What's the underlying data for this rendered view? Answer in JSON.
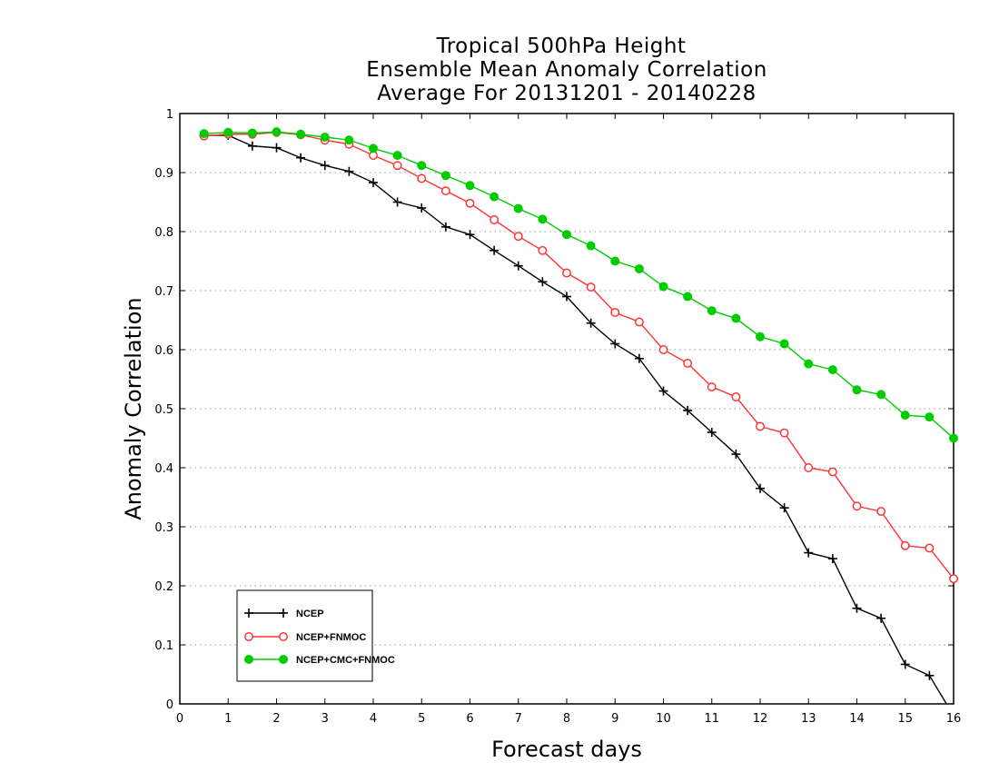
{
  "chart_data": {
    "type": "line",
    "title_lines": [
      "Tropical 500hPa Height",
      "Ensemble Mean Anomaly Correlation",
      "Average For 20131201 - 20140228"
    ],
    "xlabel": "Forecast days",
    "ylabel": "Anomaly Correlation",
    "xlim": [
      0,
      16
    ],
    "ylim": [
      0,
      1
    ],
    "xticks": [
      "0",
      "1",
      "2",
      "3",
      "4",
      "5",
      "6",
      "7",
      "8",
      "9",
      "10",
      "11",
      "12",
      "13",
      "14",
      "15",
      "16"
    ],
    "yticks": [
      "0",
      "0.1",
      "0.2",
      "0.3",
      "0.4",
      "0.5",
      "0.6",
      "0.7",
      "0.8",
      "0.9",
      "1"
    ],
    "grid": "horizontal dotted",
    "legend_position": "lower-left",
    "x": [
      0.5,
      1,
      1.5,
      2,
      2.5,
      3,
      3.5,
      4,
      4.5,
      5,
      5.5,
      6,
      6.5,
      7,
      7.5,
      8,
      8.5,
      9,
      9.5,
      10,
      10.5,
      11,
      11.5,
      12,
      12.5,
      13,
      13.5,
      14,
      14.5,
      15,
      15.5,
      16
    ],
    "series": [
      {
        "name": "NCEP",
        "color": "#000000",
        "marker": "plus",
        "values": [
          0.963,
          0.963,
          0.945,
          0.942,
          0.925,
          0.912,
          0.902,
          0.883,
          0.85,
          0.84,
          0.808,
          0.795,
          0.768,
          0.742,
          0.715,
          0.69,
          0.645,
          0.61,
          0.585,
          0.53,
          0.497,
          0.46,
          0.423,
          0.365,
          0.332,
          0.256,
          0.246,
          0.162,
          0.145,
          0.067,
          0.048,
          -0.02
        ]
      },
      {
        "name": "NCEP+FNMOC",
        "color": "#ff3333",
        "marker": "open-circle",
        "values": [
          0.962,
          0.965,
          0.965,
          0.968,
          0.964,
          0.955,
          0.948,
          0.929,
          0.912,
          0.89,
          0.869,
          0.848,
          0.82,
          0.792,
          0.768,
          0.73,
          0.706,
          0.663,
          0.647,
          0.6,
          0.577,
          0.537,
          0.52,
          0.47,
          0.459,
          0.4,
          0.393,
          0.335,
          0.326,
          0.268,
          0.264,
          0.212
        ]
      },
      {
        "name": "NCEP+CMC+FNMOC",
        "color": "#00cc00",
        "marker": "filled-circle",
        "values": [
          0.966,
          0.968,
          0.967,
          0.969,
          0.965,
          0.96,
          0.955,
          0.941,
          0.929,
          0.912,
          0.895,
          0.878,
          0.859,
          0.839,
          0.821,
          0.795,
          0.776,
          0.75,
          0.737,
          0.707,
          0.69,
          0.666,
          0.653,
          0.622,
          0.61,
          0.576,
          0.566,
          0.532,
          0.524,
          0.489,
          0.486,
          0.45
        ]
      }
    ]
  }
}
